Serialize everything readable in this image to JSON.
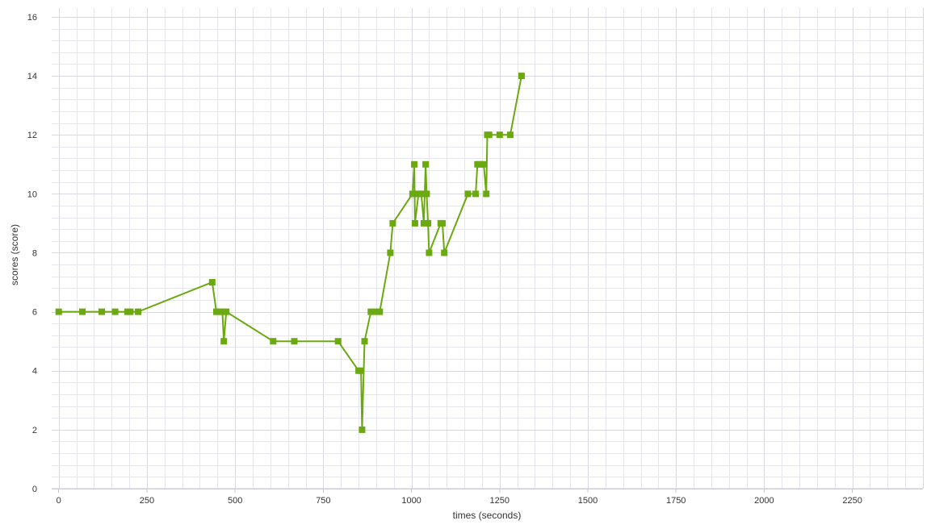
{
  "colors": {
    "series": "#6aa90f",
    "grid": "#e6e6ee",
    "text": "#333333"
  },
  "chart_data": {
    "type": "line",
    "xlabel": "times (seconds)",
    "ylabel": "scores (score)",
    "xlim": [
      -20,
      2450
    ],
    "ylim": [
      0,
      16.3
    ],
    "xticks": [
      0,
      250,
      500,
      750,
      1000,
      1250,
      1500,
      1750,
      2000,
      2250
    ],
    "yticks": [
      0,
      2,
      4,
      6,
      8,
      10,
      12,
      14,
      16
    ],
    "grid": true,
    "legend": "none",
    "marker": "square",
    "series": [
      {
        "x": [
          0,
          67,
          122,
          160,
          195,
          203,
          225,
          435,
          447,
          454,
          464,
          468,
          475,
          608,
          668,
          792,
          850,
          857,
          860,
          867,
          885,
          900,
          910,
          940,
          947,
          1003,
          1008,
          1010,
          1020,
          1028,
          1035,
          1040,
          1043,
          1047,
          1050,
          1083,
          1088,
          1093,
          1160,
          1182,
          1187,
          1195,
          1205,
          1212,
          1215,
          1220,
          1250,
          1280,
          1312
        ],
        "y": [
          6,
          6,
          6,
          6,
          6,
          6,
          6,
          7,
          6,
          6,
          6,
          5,
          6,
          5,
          5,
          5,
          4,
          4,
          2,
          5,
          6,
          6,
          6,
          8,
          9,
          10,
          11,
          9,
          10,
          10,
          9,
          11,
          10,
          9,
          8,
          9,
          9,
          8,
          10,
          10,
          11,
          11,
          11,
          10,
          12,
          12,
          12,
          12,
          14
        ]
      }
    ]
  }
}
